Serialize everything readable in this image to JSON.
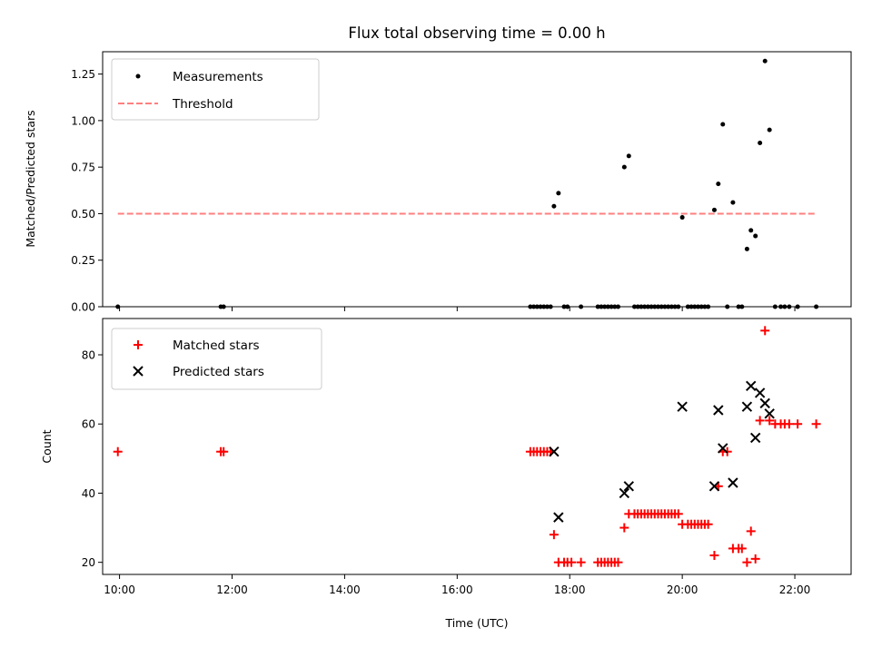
{
  "chart_data": [
    {
      "type": "scatter",
      "title": "Flux total observing time = 0.00 h",
      "xlabel": "",
      "ylabel": "Matched/Predicted stars",
      "xlim": [
        9.7,
        23.0
      ],
      "ylim": [
        0,
        1.37
      ],
      "yticks": [
        0,
        0.25,
        0.5,
        0.75,
        1.0,
        1.25
      ],
      "ytick_labels": [
        "0.00",
        "0.25",
        "0.50",
        "0.75",
        "1.00",
        "1.25"
      ],
      "xticks": [
        10,
        12,
        14,
        16,
        18,
        20,
        22
      ],
      "legend": {
        "position": "top-left",
        "entries": [
          "Measurements",
          "Threshold"
        ]
      },
      "series": [
        {
          "name": "Measurements",
          "marker": "dot",
          "color": "#000000",
          "points": [
            [
              9.97,
              0
            ],
            [
              11.8,
              0
            ],
            [
              11.85,
              0
            ],
            [
              17.3,
              0
            ],
            [
              17.36,
              0
            ],
            [
              17.42,
              0
            ],
            [
              17.48,
              0
            ],
            [
              17.54,
              0
            ],
            [
              17.6,
              0
            ],
            [
              17.66,
              0
            ],
            [
              17.72,
              0.54
            ],
            [
              17.8,
              0.61
            ],
            [
              17.9,
              0
            ],
            [
              17.96,
              0
            ],
            [
              18.2,
              0
            ],
            [
              18.5,
              0
            ],
            [
              18.56,
              0
            ],
            [
              18.62,
              0
            ],
            [
              18.68,
              0
            ],
            [
              18.74,
              0
            ],
            [
              18.8,
              0
            ],
            [
              18.86,
              0
            ],
            [
              18.97,
              0.75
            ],
            [
              19.05,
              0.81
            ],
            [
              19.15,
              0
            ],
            [
              19.21,
              0
            ],
            [
              19.27,
              0
            ],
            [
              19.33,
              0
            ],
            [
              19.39,
              0
            ],
            [
              19.45,
              0
            ],
            [
              19.51,
              0
            ],
            [
              19.57,
              0
            ],
            [
              19.63,
              0
            ],
            [
              19.69,
              0
            ],
            [
              19.75,
              0
            ],
            [
              19.81,
              0
            ],
            [
              19.87,
              0
            ],
            [
              19.93,
              0
            ],
            [
              20.0,
              0.48
            ],
            [
              20.1,
              0
            ],
            [
              20.16,
              0
            ],
            [
              20.22,
              0
            ],
            [
              20.28,
              0
            ],
            [
              20.34,
              0
            ],
            [
              20.4,
              0
            ],
            [
              20.46,
              0
            ],
            [
              20.57,
              0.52
            ],
            [
              20.64,
              0.66
            ],
            [
              20.72,
              0.98
            ],
            [
              20.8,
              0
            ],
            [
              20.9,
              0.56
            ],
            [
              21.0,
              0
            ],
            [
              21.06,
              0
            ],
            [
              21.15,
              0.31
            ],
            [
              21.22,
              0.41
            ],
            [
              21.3,
              0.38
            ],
            [
              21.38,
              0.88
            ],
            [
              21.47,
              1.32
            ],
            [
              21.55,
              0.95
            ],
            [
              21.65,
              0
            ],
            [
              21.75,
              0
            ],
            [
              21.82,
              0
            ],
            [
              21.9,
              0
            ],
            [
              22.05,
              0
            ],
            [
              22.38,
              0
            ]
          ]
        },
        {
          "name": "Threshold",
          "style": "dashed",
          "color": "#ff7f7f",
          "points": [
            [
              9.97,
              0.5
            ],
            [
              22.38,
              0.5
            ]
          ]
        }
      ]
    },
    {
      "type": "scatter",
      "title": "",
      "xlabel": "Time (UTC)",
      "ylabel": "Count",
      "xlim": [
        9.7,
        23.0
      ],
      "ylim": [
        16.5,
        90.5
      ],
      "yticks": [
        20,
        40,
        60,
        80
      ],
      "ytick_labels": [
        "20",
        "40",
        "60",
        "80"
      ],
      "xticks": [
        10,
        12,
        14,
        16,
        18,
        20,
        22
      ],
      "xtick_labels": [
        "10:00",
        "12:00",
        "14:00",
        "16:00",
        "18:00",
        "20:00",
        "22:00"
      ],
      "legend": {
        "position": "top-left",
        "entries": [
          "Matched stars",
          "Predicted stars"
        ]
      },
      "series": [
        {
          "name": "Matched stars",
          "marker": "plus",
          "color": "#ff0000",
          "points": [
            [
              9.97,
              52
            ],
            [
              11.8,
              52
            ],
            [
              11.85,
              52
            ],
            [
              17.3,
              52
            ],
            [
              17.36,
              52
            ],
            [
              17.42,
              52
            ],
            [
              17.48,
              52
            ],
            [
              17.54,
              52
            ],
            [
              17.6,
              52
            ],
            [
              17.66,
              52
            ],
            [
              17.72,
              28
            ],
            [
              17.8,
              20
            ],
            [
              17.9,
              20
            ],
            [
              17.96,
              20
            ],
            [
              18.03,
              20
            ],
            [
              18.2,
              20
            ],
            [
              18.5,
              20
            ],
            [
              18.56,
              20
            ],
            [
              18.62,
              20
            ],
            [
              18.68,
              20
            ],
            [
              18.74,
              20
            ],
            [
              18.8,
              20
            ],
            [
              18.86,
              20
            ],
            [
              18.97,
              30
            ],
            [
              19.05,
              34
            ],
            [
              19.15,
              34
            ],
            [
              19.21,
              34
            ],
            [
              19.27,
              34
            ],
            [
              19.33,
              34
            ],
            [
              19.39,
              34
            ],
            [
              19.45,
              34
            ],
            [
              19.51,
              34
            ],
            [
              19.57,
              34
            ],
            [
              19.63,
              34
            ],
            [
              19.69,
              34
            ],
            [
              19.75,
              34
            ],
            [
              19.81,
              34
            ],
            [
              19.87,
              34
            ],
            [
              19.93,
              34
            ],
            [
              20.0,
              31
            ],
            [
              20.1,
              31
            ],
            [
              20.16,
              31
            ],
            [
              20.22,
              31
            ],
            [
              20.28,
              31
            ],
            [
              20.34,
              31
            ],
            [
              20.4,
              31
            ],
            [
              20.46,
              31
            ],
            [
              20.57,
              22
            ],
            [
              20.64,
              42
            ],
            [
              20.72,
              52
            ],
            [
              20.8,
              52
            ],
            [
              20.9,
              24
            ],
            [
              21.0,
              24
            ],
            [
              21.06,
              24
            ],
            [
              21.15,
              20
            ],
            [
              21.22,
              29
            ],
            [
              21.3,
              21
            ],
            [
              21.38,
              61
            ],
            [
              21.47,
              87
            ],
            [
              21.55,
              61
            ],
            [
              21.65,
              60
            ],
            [
              21.75,
              60
            ],
            [
              21.82,
              60
            ],
            [
              21.9,
              60
            ],
            [
              22.05,
              60
            ],
            [
              22.38,
              60
            ]
          ]
        },
        {
          "name": "Predicted stars",
          "marker": "x",
          "color": "#000000",
          "points": [
            [
              17.72,
              52
            ],
            [
              17.8,
              33
            ],
            [
              18.97,
              40
            ],
            [
              19.05,
              42
            ],
            [
              20.0,
              65
            ],
            [
              20.57,
              42
            ],
            [
              20.64,
              64
            ],
            [
              20.72,
              53
            ],
            [
              20.9,
              43
            ],
            [
              21.15,
              65
            ],
            [
              21.22,
              71
            ],
            [
              21.3,
              56
            ],
            [
              21.38,
              69
            ],
            [
              21.47,
              66
            ],
            [
              21.55,
              63
            ]
          ]
        }
      ]
    }
  ]
}
